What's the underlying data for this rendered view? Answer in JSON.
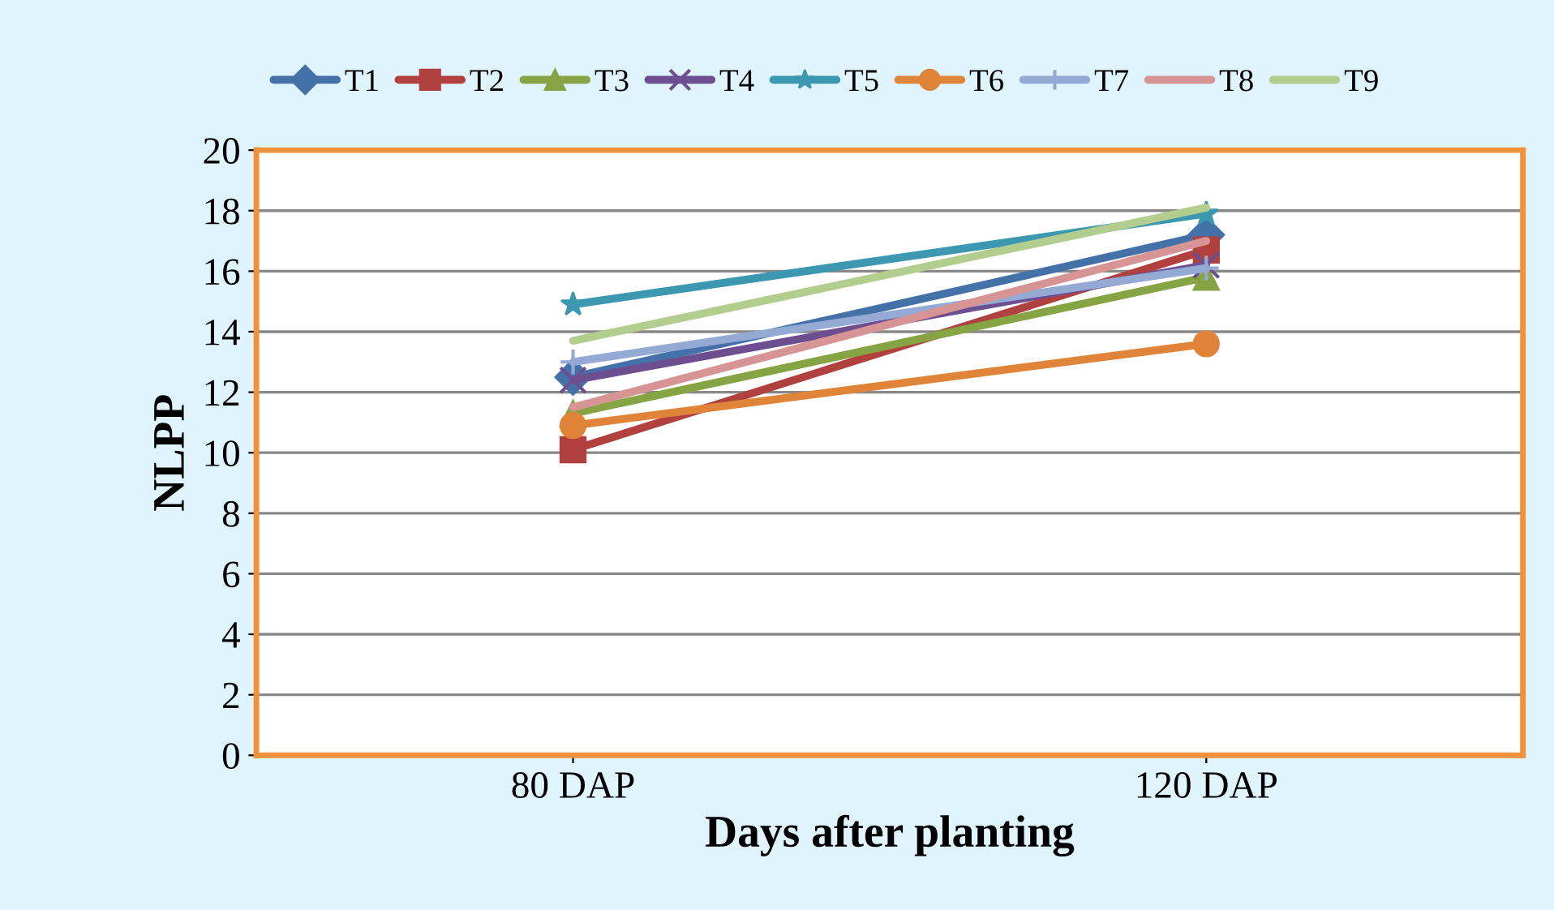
{
  "chart_data": {
    "type": "line",
    "xlabel": "Days after planting",
    "ylabel": "NLPP",
    "categories": [
      "80 DAP",
      "120 DAP"
    ],
    "series": [
      {
        "name": "T1",
        "color": "#4472a8",
        "marker": "diamond",
        "values": [
          12.5,
          17.2
        ]
      },
      {
        "name": "T2",
        "color": "#b0413e",
        "marker": "square",
        "values": [
          10.1,
          16.7
        ]
      },
      {
        "name": "T3",
        "color": "#86a443",
        "marker": "triangle",
        "values": [
          11.3,
          15.8
        ]
      },
      {
        "name": "T4",
        "color": "#6d4e91",
        "marker": "cross",
        "values": [
          12.4,
          16.2
        ]
      },
      {
        "name": "T5",
        "color": "#3c98b0",
        "marker": "star",
        "values": [
          14.9,
          17.9
        ]
      },
      {
        "name": "T6",
        "color": "#e0843a",
        "marker": "circle",
        "values": [
          10.9,
          13.6
        ]
      },
      {
        "name": "T7",
        "color": "#94a9d4",
        "marker": "plus",
        "values": [
          13.0,
          16.1
        ]
      },
      {
        "name": "T8",
        "color": "#d69594",
        "marker": "none",
        "values": [
          11.5,
          17.0
        ]
      },
      {
        "name": "T9",
        "color": "#b3cd8e",
        "marker": "none",
        "values": [
          13.7,
          18.1
        ]
      }
    ],
    "ylim": [
      0,
      20
    ],
    "yticks": [
      0,
      2,
      4,
      6,
      8,
      10,
      12,
      14,
      16,
      18,
      20
    ],
    "grid": "y",
    "legend": "top"
  }
}
